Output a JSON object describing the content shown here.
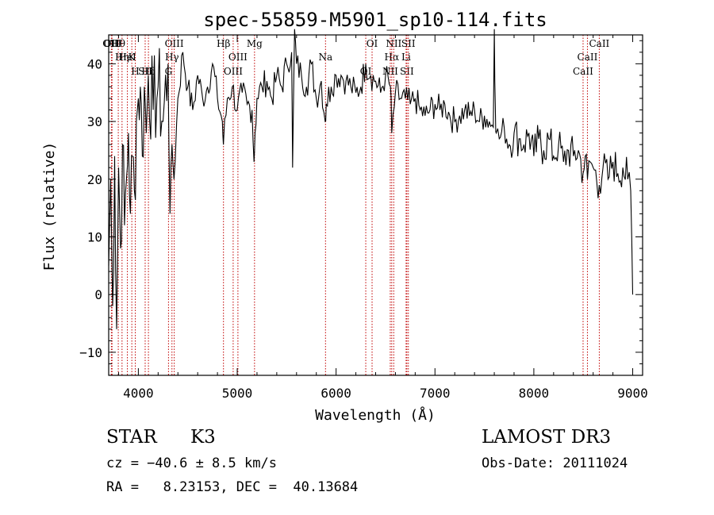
{
  "chart_data": {
    "type": "line",
    "title": "spec-55859-M5901_sp10-114.fits",
    "xlabel": "Wavelength (Å)",
    "ylabel": "Flux (relative)",
    "xlim": [
      3700,
      9100
    ],
    "ylim": [
      -14,
      45
    ],
    "xticks": [
      4000,
      5000,
      6000,
      7000,
      8000,
      9000
    ],
    "yticks": [
      -10,
      0,
      10,
      20,
      30,
      40
    ],
    "series": [
      {
        "name": "spectrum",
        "x": [
          3700,
          3720,
          3740,
          3760,
          3780,
          3800,
          3820,
          3840,
          3860,
          3880,
          3900,
          3920,
          3940,
          3960,
          3980,
          4000,
          4020,
          4040,
          4060,
          4080,
          4100,
          4150,
          4200,
          4250,
          4300,
          4320,
          4340,
          4360,
          4400,
          4450,
          4500,
          4550,
          4600,
          4650,
          4700,
          4750,
          4800,
          4850,
          4860,
          4900,
          4950,
          5000,
          5050,
          5100,
          5150,
          5170,
          5180,
          5200,
          5250,
          5300,
          5350,
          5400,
          5450,
          5500,
          5550,
          5560,
          5580,
          5600,
          5650,
          5700,
          5750,
          5800,
          5850,
          5890,
          5900,
          5950,
          6000,
          6050,
          6100,
          6150,
          6200,
          6250,
          6300,
          6350,
          6400,
          6450,
          6500,
          6550,
          6563,
          6600,
          6650,
          6700,
          6750,
          6800,
          6850,
          6900,
          6950,
          7000,
          7050,
          7100,
          7150,
          7200,
          7250,
          7300,
          7350,
          7400,
          7450,
          7500,
          7550,
          7590,
          7600,
          7610,
          7620,
          7650,
          7700,
          7750,
          7800,
          7850,
          7900,
          7950,
          8000,
          8050,
          8100,
          8150,
          8200,
          8250,
          8300,
          8350,
          8400,
          8450,
          8498,
          8520,
          8542,
          8570,
          8600,
          8662,
          8700,
          8750,
          8800,
          8850,
          8900,
          8950,
          8980,
          9000
        ],
        "values": [
          5,
          20,
          -2,
          24,
          -6,
          22,
          8,
          26,
          12,
          20,
          28,
          14,
          24,
          18,
          30,
          34,
          36,
          24,
          36,
          28,
          38,
          32,
          36,
          30,
          40,
          14,
          26,
          20,
          34,
          42,
          36,
          32,
          38,
          34,
          36,
          40,
          34,
          30,
          26,
          34,
          36,
          32,
          35,
          33,
          32,
          23,
          28,
          34,
          36,
          37,
          34,
          38,
          36,
          40,
          42,
          22,
          46,
          40,
          38,
          36,
          40,
          34,
          37,
          30,
          33,
          36,
          38,
          38,
          37,
          36,
          35,
          36,
          40,
          38,
          37,
          35,
          38,
          36,
          28,
          35,
          34,
          34,
          33,
          34,
          32,
          31,
          32,
          33,
          32,
          33,
          31,
          30,
          31,
          32,
          31,
          32,
          30,
          31,
          30,
          29,
          46,
          33,
          28,
          27,
          29,
          26,
          28,
          27,
          26,
          28,
          24,
          27,
          25,
          27,
          24,
          26,
          23,
          25,
          24,
          25,
          21,
          24,
          20,
          23,
          22,
          19,
          22,
          20,
          23,
          21,
          22,
          20,
          18,
          0
        ]
      }
    ],
    "lines": [
      {
        "label": "Hθ",
        "x": 3797
      },
      {
        "label": "K",
        "x": 3934
      },
      {
        "label": "Hδ",
        "x": 4102
      },
      {
        "label": "OIII",
        "x": 4363
      },
      {
        "label": "Hγ",
        "x": 4340
      },
      {
        "label": "G",
        "x": 4305
      },
      {
        "label": "OII",
        "x": 3727
      },
      {
        "label": "HeI",
        "x": 3889
      },
      {
        "label": "SII",
        "x": 4069
      },
      {
        "label": "OIII",
        "x": 3734
      },
      {
        "label": "Hη",
        "x": 3835
      },
      {
        "label": "H",
        "x": 3969
      },
      {
        "label": "Hβ",
        "x": 4861
      },
      {
        "label": "OIII",
        "x": 5007
      },
      {
        "label": "OIII",
        "x": 4959
      },
      {
        "label": "Mg",
        "x": 5175
      },
      {
        "label": "Na",
        "x": 5893
      },
      {
        "label": "OI",
        "x": 6300
      },
      {
        "label": "OI",
        "x": 6364
      },
      {
        "label": "Hα",
        "x": 6563
      },
      {
        "label": "SII",
        "x": 6716
      },
      {
        "label": "NII",
        "x": 6583
      },
      {
        "label": "Li",
        "x": 6708
      },
      {
        "label": "NII",
        "x": 6548
      },
      {
        "label": "SII",
        "x": 6731
      },
      {
        "label": "CaII",
        "x": 8542
      },
      {
        "label": "CaII",
        "x": 8498
      },
      {
        "label": "CaII",
        "x": 8662
      }
    ],
    "grid": false,
    "legend": "none"
  },
  "info": {
    "object_class": "STAR",
    "subclass": "K3",
    "survey": "LAMOST DR3",
    "cz": "cz = −40.6 ± 8.5 km/s",
    "obs_date": "Obs-Date: 20111024",
    "coords": "RA =   8.23153, DEC =  40.13684"
  }
}
